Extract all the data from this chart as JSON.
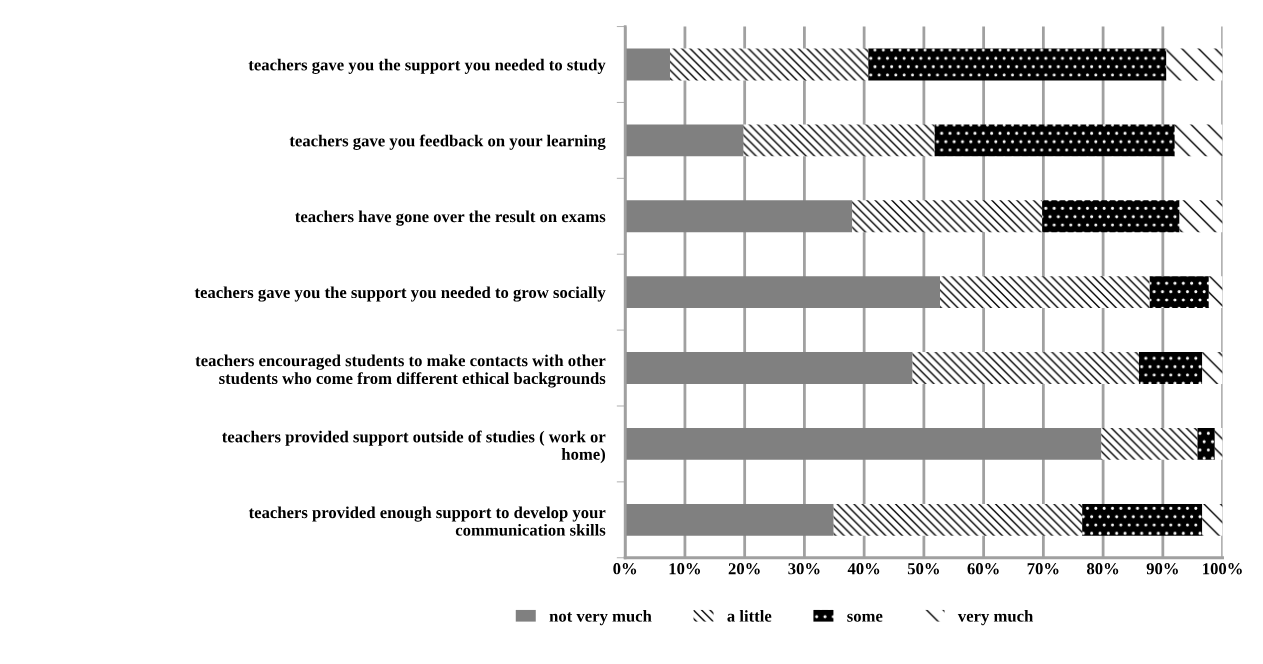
{
  "chart_data": {
    "type": "bar",
    "orientation": "horizontal",
    "stacked": true,
    "categories": [
      "teachers gave you the support you needed to study",
      "teachers gave you feedback on your learning",
      "teachers have gone over the result on exams",
      "teachers gave you the support you needed to grow socially",
      "teachers encouraged students to make contacts with other\nstudents who come from different ethical backgrounds",
      "teachers provided support outside of studies ( work or\nhome)",
      "teachers provided enough support to develop your\ncommunication skills"
    ],
    "series": [
      {
        "name": "not very much",
        "color": "#808080",
        "values": [
          7.5,
          19.8,
          38,
          52.7,
          48.1,
          79.7,
          34.9
        ]
      },
      {
        "name": "a little",
        "color": "#ffffff",
        "values": [
          33.2,
          32,
          31.8,
          35.1,
          37.9,
          16.1,
          41.6
        ]
      },
      {
        "name": "some",
        "color": "#000000",
        "values": [
          49.9,
          40.2,
          23,
          9.9,
          10.6,
          2.9,
          20.1
        ]
      },
      {
        "name": "very much",
        "color": "#ffffff",
        "values": [
          9.4,
          8,
          7.2,
          2.3,
          3.4,
          1.3,
          3.4
        ]
      }
    ],
    "xlim": [
      0,
      100
    ],
    "xticks": [
      {
        "value": 0,
        "label": "0%"
      },
      {
        "value": 10,
        "label": "10%"
      },
      {
        "value": 20,
        "label": "20%"
      },
      {
        "value": 30,
        "label": "30%"
      },
      {
        "value": 40,
        "label": "40%"
      },
      {
        "value": 50,
        "label": "50%"
      },
      {
        "value": 60,
        "label": "60%"
      },
      {
        "value": 70,
        "label": "70%"
      },
      {
        "value": 80,
        "label": "80%"
      },
      {
        "value": 90,
        "label": "90%"
      },
      {
        "value": 100,
        "label": "100%"
      }
    ],
    "grid": "x",
    "legend": "bottom"
  }
}
